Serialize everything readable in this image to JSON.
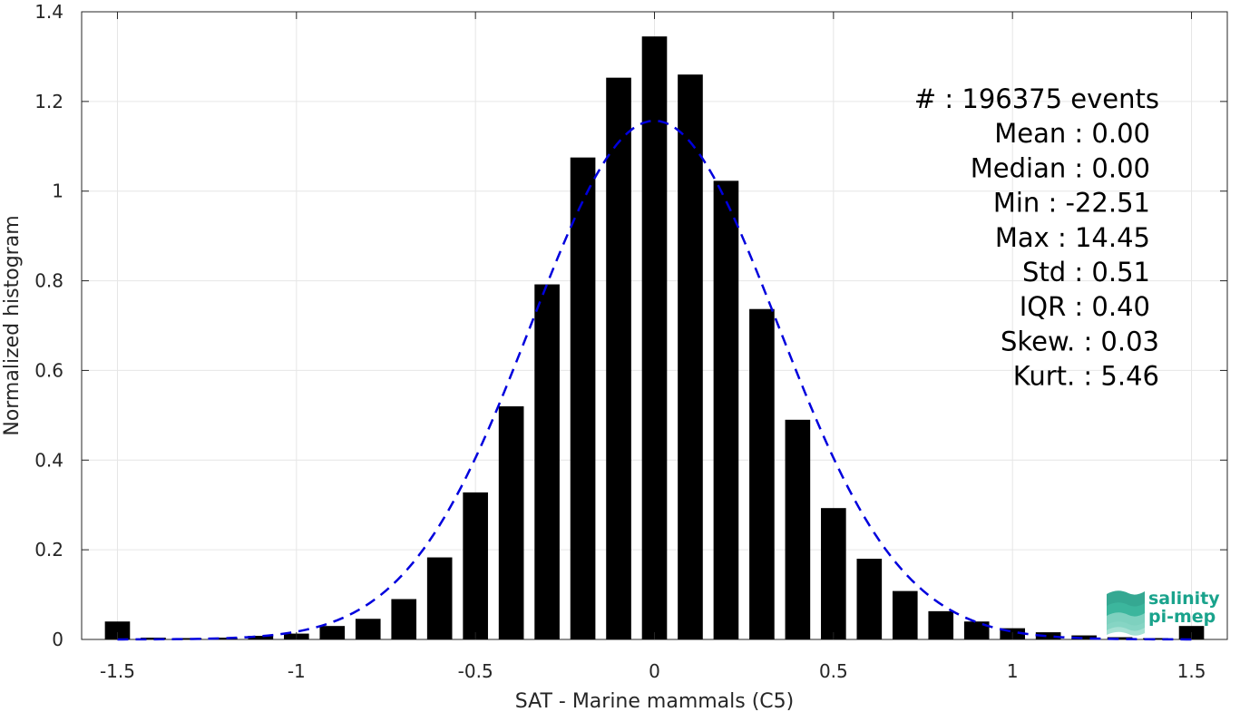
{
  "chart_data": {
    "type": "bar",
    "xlabel": "SAT - Marine mammals (C5)",
    "ylabel": "Normalized histogram",
    "xlim": [
      -1.6,
      1.6
    ],
    "ylim": [
      0,
      1.4
    ],
    "xticks": [
      -1.5,
      -1,
      -0.5,
      0,
      0.5,
      1,
      1.5
    ],
    "xtick_labels": [
      "-1.5",
      "-1",
      "-0.5",
      "0",
      "0.5",
      "1",
      "1.5"
    ],
    "yticks": [
      0,
      0.2,
      0.4,
      0.6,
      0.8,
      1,
      1.2,
      1.4
    ],
    "ytick_labels": [
      "0",
      "0.2",
      "0.4",
      "0.6",
      "0.8",
      "1",
      "1.2",
      "1.4"
    ],
    "grid": true,
    "bar_color": "#000000",
    "bin_width": 0.1,
    "x": [
      -1.5,
      -1.4,
      -1.3,
      -1.2,
      -1.1,
      -1.0,
      -0.9,
      -0.8,
      -0.7,
      -0.6,
      -0.5,
      -0.4,
      -0.3,
      -0.2,
      -0.1,
      0.0,
      0.1,
      0.2,
      0.3,
      0.4,
      0.5,
      0.6,
      0.7,
      0.8,
      0.9,
      1.0,
      1.1,
      1.2,
      1.3,
      1.4,
      1.5
    ],
    "values": [
      0.04,
      0.004,
      0.003,
      0.004,
      0.008,
      0.013,
      0.03,
      0.046,
      0.09,
      0.183,
      0.328,
      0.52,
      0.792,
      1.075,
      1.253,
      1.345,
      1.26,
      1.023,
      0.737,
      0.49,
      0.293,
      0.18,
      0.108,
      0.063,
      0.04,
      0.025,
      0.016,
      0.009,
      0.005,
      0.003,
      0.03
    ],
    "fit_curve": {
      "style": "dashed",
      "color": "#0000dd",
      "mean": 0.0,
      "std": 0.345,
      "peak": 1.157,
      "x_range": [
        -1.5,
        1.5
      ]
    },
    "stats": [
      "#  : 196375 events",
      "Mean : 0.00",
      "Median : 0.00",
      "Min : -22.51",
      "Max : 14.45",
      "Std : 0.51",
      "IQR : 0.40",
      "Skew. : 0.03",
      "Kurt. : 5.46"
    ]
  },
  "logo": {
    "line1": "salinity",
    "line2": "pi-mep",
    "color": "#1aa38c"
  }
}
